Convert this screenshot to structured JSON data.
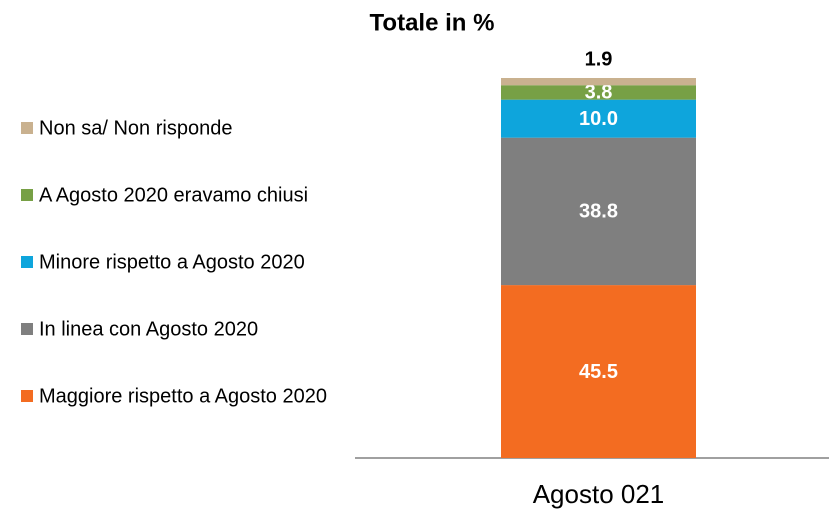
{
  "chart_data": {
    "type": "stacked_bar",
    "title": "Totale in %",
    "categories": [
      "Agosto 021"
    ],
    "ylim": [
      0,
      100
    ],
    "legend": "left",
    "series": [
      {
        "name": "Maggiore rispetto a Agosto 2020",
        "color": "#f36c21",
        "values": [
          45.5
        ],
        "value_labels": [
          "45.5"
        ]
      },
      {
        "name": "In linea con Agosto 2020",
        "color": "#7f7f7f",
        "values": [
          38.8
        ],
        "value_labels": [
          "38.8"
        ]
      },
      {
        "name": "Minore rispetto a Agosto 2020",
        "color": "#0ea5dc",
        "values": [
          10.0
        ],
        "value_labels": [
          "10.0"
        ]
      },
      {
        "name": "A Agosto 2020 eravamo chiusi",
        "color": "#77a045",
        "values": [
          3.8
        ],
        "value_labels": [
          "3.8"
        ]
      },
      {
        "name": "Non sa/ Non risponde",
        "color": "#c9b18f",
        "values": [
          1.9
        ],
        "value_labels": [
          "1.9"
        ]
      }
    ]
  }
}
